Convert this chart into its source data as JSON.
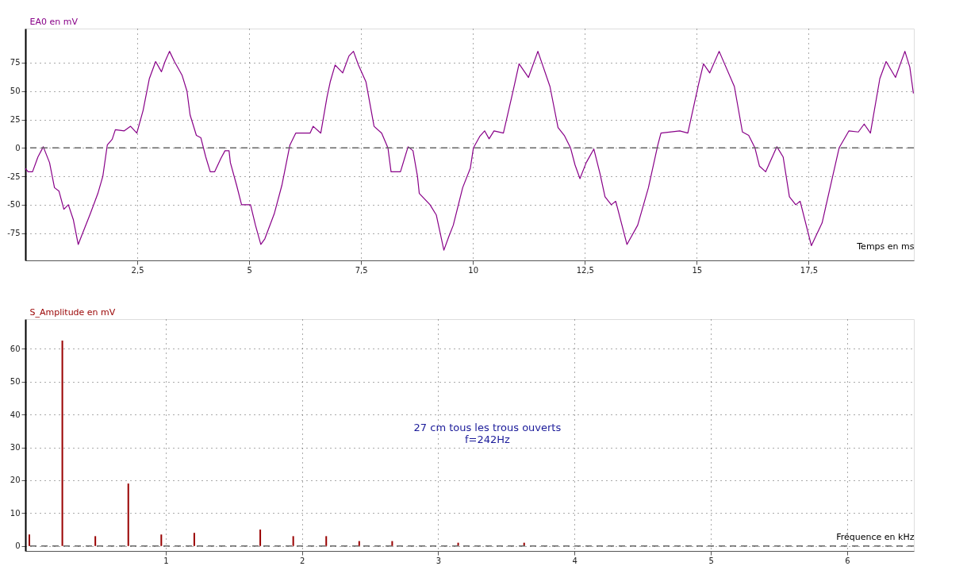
{
  "chart_data": [
    {
      "type": "line",
      "ylabel": "EA0 en mV",
      "xlabel": "Temps en ms",
      "xlim": [
        0,
        19.85
      ],
      "ylim": [
        -99,
        105
      ],
      "xticks": [
        {
          "value": 2.5,
          "label": "2,5"
        },
        5,
        {
          "value": 7.5,
          "label": "7,5"
        },
        10,
        {
          "value": 12.5,
          "label": "12,5"
        },
        15,
        {
          "value": 17.5,
          "label": "17,5"
        }
      ],
      "yticks": [
        -75,
        -50,
        -25,
        0,
        25,
        50,
        75
      ],
      "grid": true,
      "ref_lines": [
        {
          "axis": "y",
          "value": 0,
          "line_style": "dashed",
          "color": "#666666"
        }
      ],
      "series": [
        {
          "color": "#880088",
          "x": [
            0,
            0.06,
            0.16,
            0.28,
            0.4,
            0.54,
            0.65,
            0.75,
            0.86,
            0.96,
            1.07,
            1.18,
            1.27,
            1.45,
            1.62,
            1.73,
            1.83,
            1.94,
            2.01,
            2.21,
            2.35,
            2.49,
            2.63,
            2.77,
            2.91,
            3.04,
            3.12,
            3.22,
            3.33,
            3.5,
            3.61,
            3.68,
            3.82,
            3.92,
            4.03,
            4.13,
            4.23,
            4.37,
            4.46,
            4.55,
            4.58,
            4.72,
            4.83,
            5.03,
            5.14,
            5.26,
            5.35,
            5.56,
            5.73,
            5.91,
            6.04,
            6.36,
            6.43,
            6.6,
            6.74,
            6.81,
            6.92,
            7.09,
            7.23,
            7.33,
            7.44,
            7.61,
            7.79,
            7.96,
            8.1,
            8.17,
            8.38,
            8.55,
            8.66,
            8.76,
            8.8,
            9.04,
            9.18,
            9.35,
            9.46,
            9.56,
            9.77,
            9.94,
            10.01,
            10.15,
            10.26,
            10.36,
            10.47,
            10.68,
            10.89,
            11.03,
            11.24,
            11.45,
            11.72,
            11.9,
            12.04,
            12.18,
            12.28,
            12.39,
            12.53,
            12.7,
            12.84,
            12.95,
            13.09,
            13.19,
            13.44,
            13.68,
            13.92,
            14.13,
            14.2,
            14.62,
            14.8,
            15.04,
            15.15,
            15.29,
            15.5,
            15.84,
            16.02,
            16.16,
            16.3,
            16.4,
            16.54,
            16.79,
            16.93,
            17.07,
            17.21,
            17.31,
            17.56,
            17.8,
            18.18,
            18.4,
            18.61,
            18.74,
            18.88,
            19.09,
            19.23,
            19.44,
            19.65,
            19.76,
            19.84
          ],
          "values": [
            -18,
            -21,
            -21,
            -8,
            1,
            -13,
            -35,
            -38,
            -54,
            -50,
            -63,
            -85,
            -76,
            -58,
            -40,
            -25,
            2.5,
            7.6,
            16,
            15,
            19,
            13,
            33,
            61,
            76,
            67,
            76,
            85,
            76,
            64,
            50,
            29,
            11,
            9,
            -8,
            -21,
            -21,
            -9,
            -2.5,
            -2.5,
            -13,
            -33,
            -50,
            -50,
            -68,
            -85,
            -80,
            -58,
            -33,
            2.5,
            13,
            13,
            19,
            13,
            45,
            58,
            73,
            66,
            81,
            85,
            73,
            58,
            19,
            13,
            0,
            -21,
            -21,
            1,
            -2.5,
            -25,
            -40,
            -50,
            -59,
            -90,
            -78,
            -68,
            -35,
            -18,
            0,
            10,
            15,
            8,
            15,
            13,
            49,
            74,
            62,
            85,
            54,
            18,
            11,
            0,
            -15,
            -27,
            -13,
            -1,
            -23,
            -43,
            -50,
            -47,
            -85,
            -68,
            -35,
            2.5,
            13,
            15,
            13,
            56,
            74,
            66,
            85,
            54,
            14,
            11,
            0,
            -16,
            -21,
            1,
            -8,
            -43,
            -50,
            -47,
            -86,
            -66,
            0,
            15,
            14,
            21,
            13,
            61,
            76,
            62,
            85,
            71,
            48
          ]
        }
      ]
    },
    {
      "type": "bar",
      "ylabel": "S_Amplitude en mV",
      "xlabel": "Fréquence en kHz",
      "xlim": [
        0,
        6.46
      ],
      "ylim": [
        -1.5,
        69
      ],
      "xticks": [
        1,
        2,
        3,
        4,
        5,
        6
      ],
      "yticks": [
        0,
        10,
        20,
        30,
        40,
        50,
        60
      ],
      "grid": true,
      "ref_lines": [
        {
          "axis": "y",
          "value": 0,
          "line_style": "dashed",
          "color": "#666666"
        }
      ],
      "annotations": [
        {
          "text": "27 cm tous les trous ouverts\nf=242Hz"
        }
      ],
      "series": [
        {
          "color": "#990000",
          "x": [
            0,
            0.242,
            0.484,
            0.726,
            0.968,
            1.21,
            1.694,
            1.936,
            2.178,
            2.42,
            2.662,
            3.146,
            3.63
          ],
          "values": [
            3.5,
            62.5,
            3,
            19,
            3.5,
            4,
            5,
            3,
            3,
            1.5,
            1.5,
            1,
            1
          ]
        }
      ]
    }
  ]
}
